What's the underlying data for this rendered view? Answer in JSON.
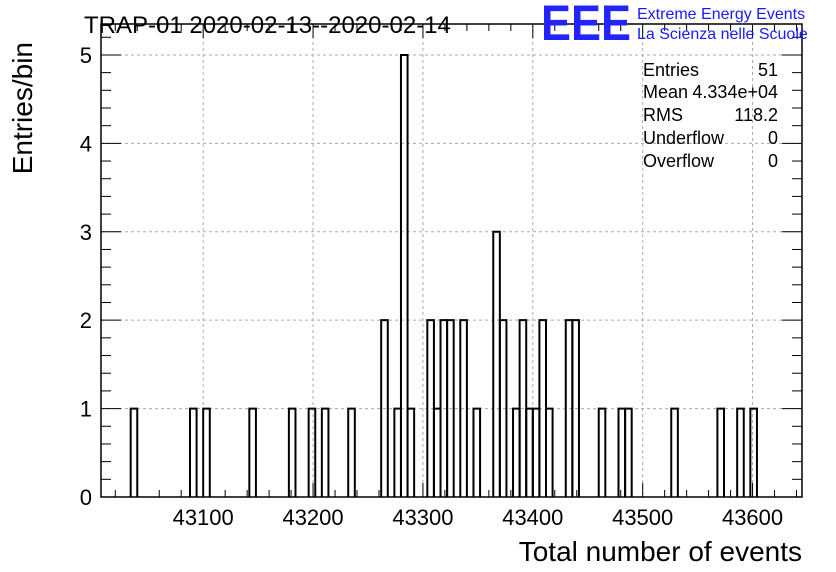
{
  "chart_data": {
    "type": "histogram",
    "title": "TRAP-01 2020-02-13--2020-02-14",
    "xlabel": "Total number of events",
    "ylabel": "Entries/bin",
    "xlim": [
      43007,
      43645
    ],
    "ylim": [
      0,
      5.35
    ],
    "grid": true,
    "x_ticks": [
      43100,
      43200,
      43300,
      43400,
      43500,
      43600
    ],
    "y_ticks": [
      0,
      1,
      2,
      3,
      4,
      5
    ],
    "bin_width": 6,
    "bins": [
      {
        "x": 43034,
        "count": 1
      },
      {
        "x": 43088,
        "count": 1
      },
      {
        "x": 43100,
        "count": 1
      },
      {
        "x": 43142,
        "count": 1
      },
      {
        "x": 43178,
        "count": 1
      },
      {
        "x": 43196,
        "count": 1
      },
      {
        "x": 43208,
        "count": 1
      },
      {
        "x": 43232,
        "count": 1
      },
      {
        "x": 43262,
        "count": 2
      },
      {
        "x": 43274,
        "count": 1
      },
      {
        "x": 43280,
        "count": 5
      },
      {
        "x": 43286,
        "count": 1
      },
      {
        "x": 43304,
        "count": 2
      },
      {
        "x": 43310,
        "count": 1
      },
      {
        "x": 43316,
        "count": 2
      },
      {
        "x": 43322,
        "count": 2
      },
      {
        "x": 43334,
        "count": 2
      },
      {
        "x": 43346,
        "count": 1
      },
      {
        "x": 43364,
        "count": 3
      },
      {
        "x": 43370,
        "count": 2
      },
      {
        "x": 43382,
        "count": 1
      },
      {
        "x": 43388,
        "count": 2
      },
      {
        "x": 43394,
        "count": 1
      },
      {
        "x": 43400,
        "count": 1
      },
      {
        "x": 43406,
        "count": 2
      },
      {
        "x": 43412,
        "count": 1
      },
      {
        "x": 43430,
        "count": 2
      },
      {
        "x": 43436,
        "count": 2
      },
      {
        "x": 43460,
        "count": 1
      },
      {
        "x": 43478,
        "count": 1
      },
      {
        "x": 43484,
        "count": 1
      },
      {
        "x": 43526,
        "count": 1
      },
      {
        "x": 43568,
        "count": 1
      },
      {
        "x": 43586,
        "count": 1
      },
      {
        "x": 43598,
        "count": 1
      }
    ],
    "stats": [
      {
        "label": "Entries",
        "value": "51"
      },
      {
        "label": "Mean",
        "value": "4.334e+04"
      },
      {
        "label": "RMS",
        "value": "118.2"
      },
      {
        "label": "Underflow",
        "value": "0"
      },
      {
        "label": "Overflow",
        "value": "0"
      }
    ],
    "colors": {
      "line": "#000000",
      "grid": "#aaaaaa",
      "logo": "#2323ff"
    }
  },
  "logo": {
    "mark": "EEE",
    "line1": "Extreme Energy Events",
    "line2": "La Scienza nelle Scuole"
  }
}
